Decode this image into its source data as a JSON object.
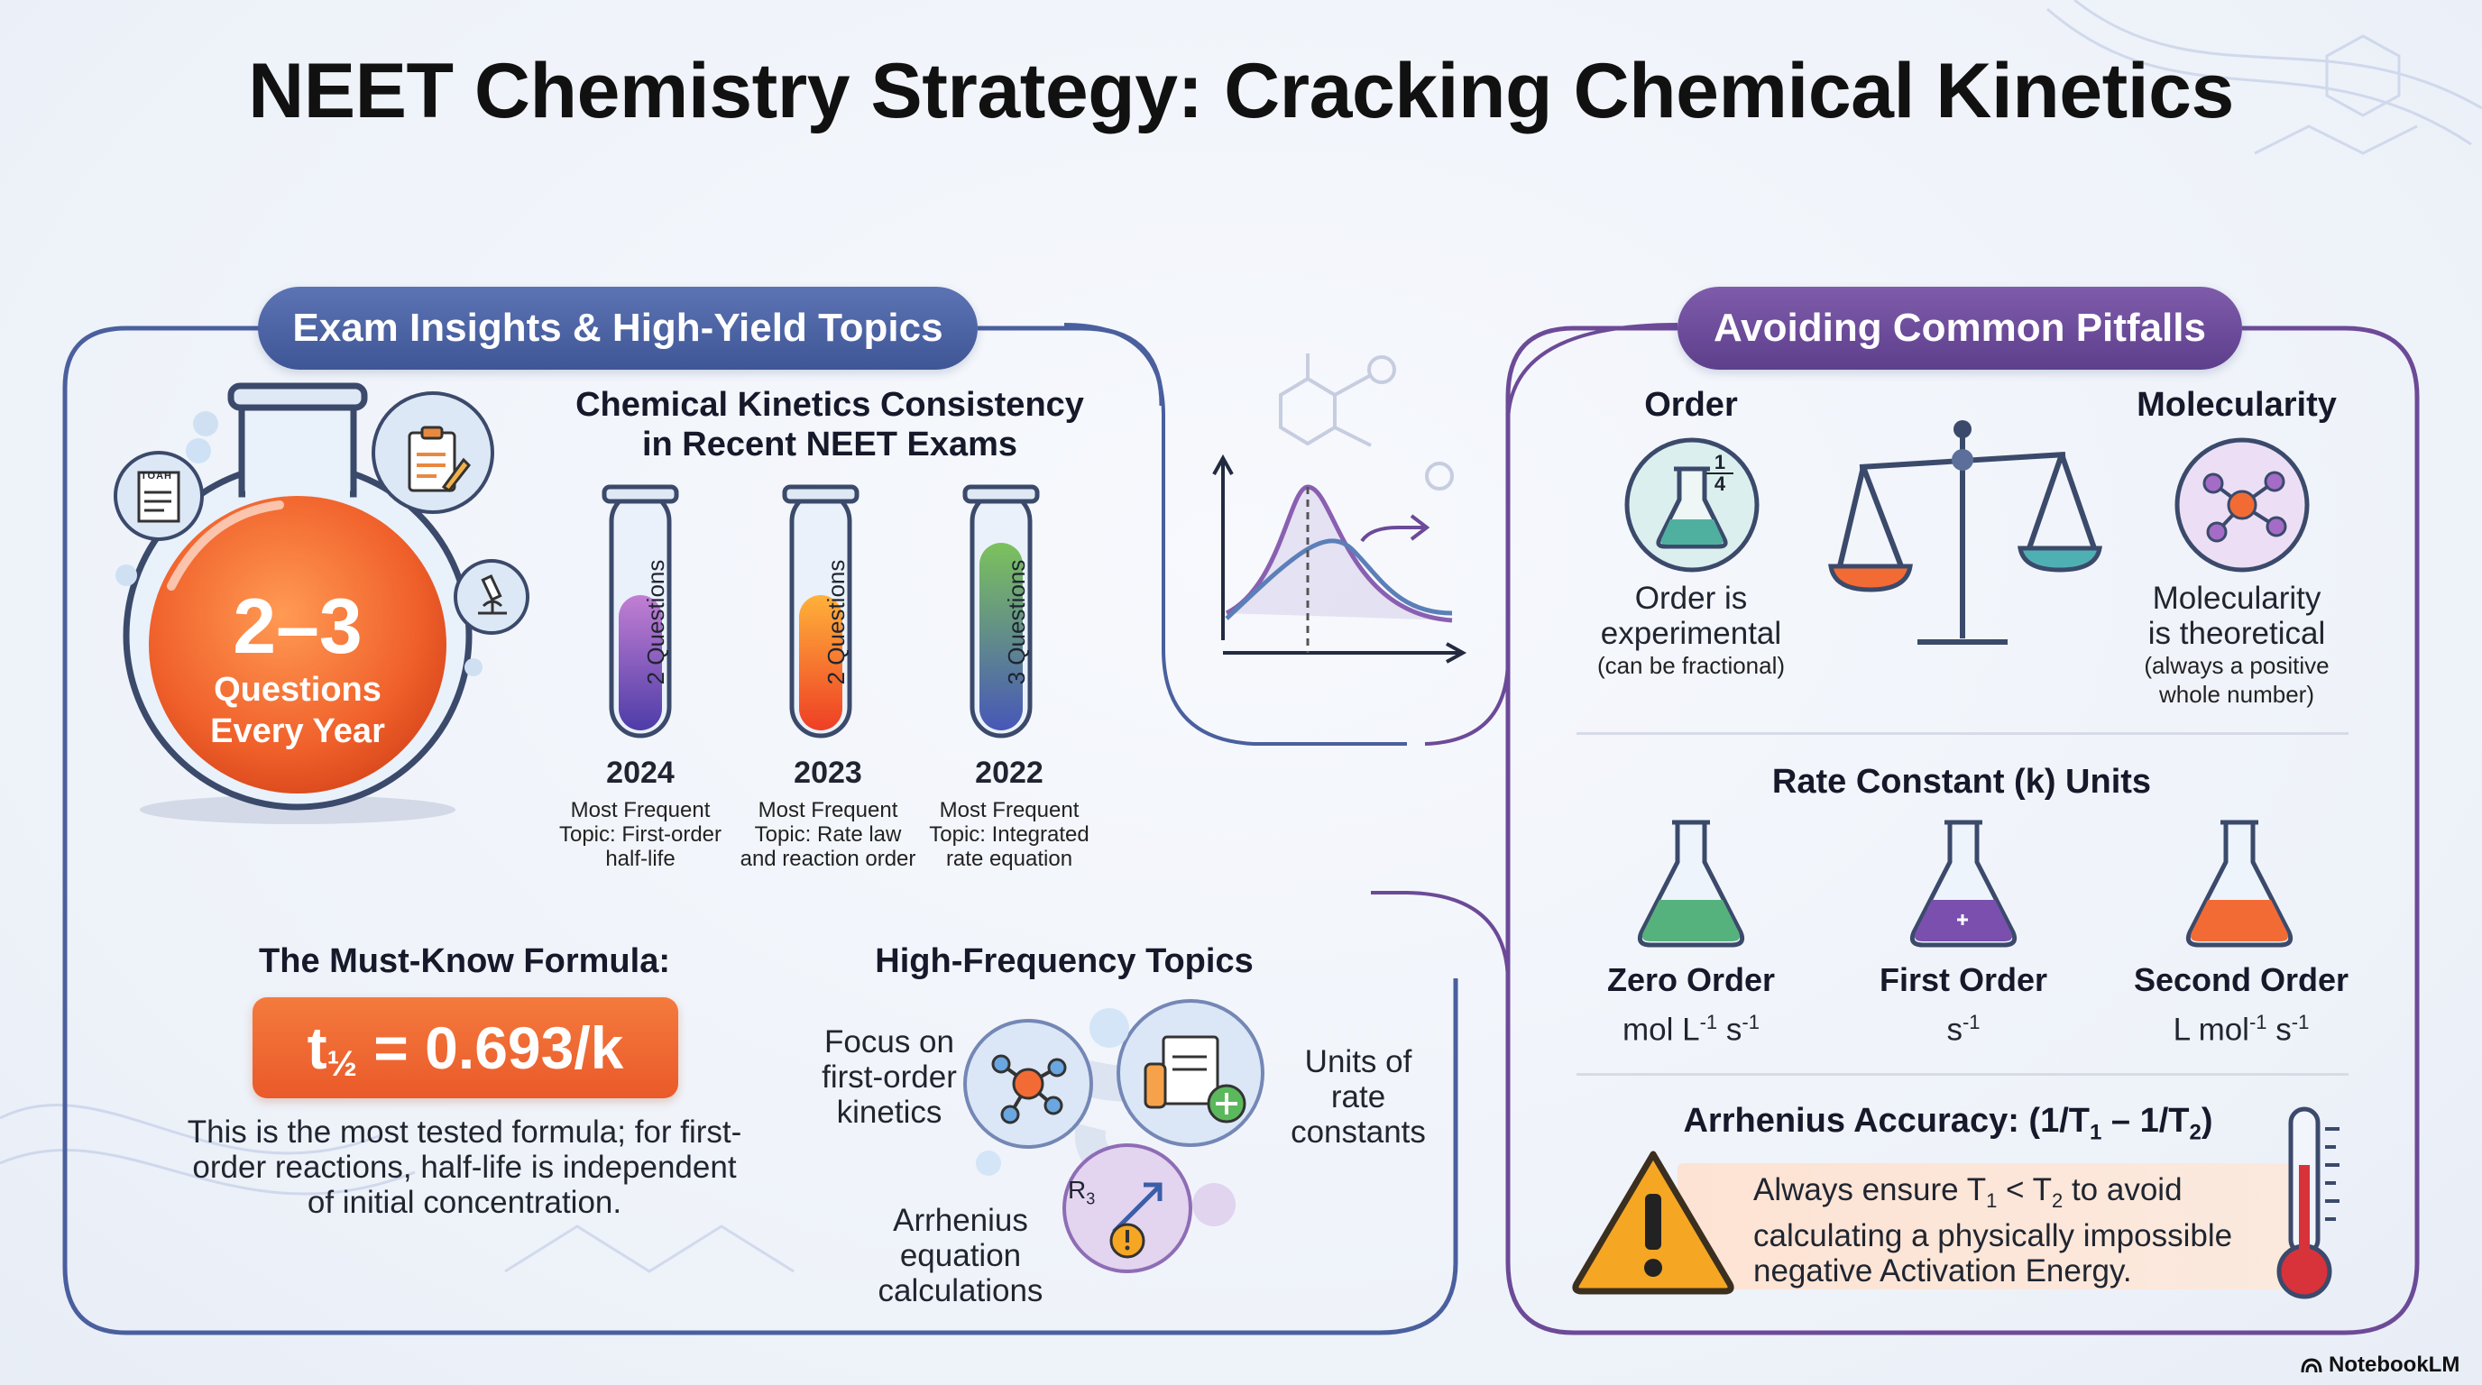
{
  "title": "NEET Chemistry Strategy: Cracking Chemical Kinetics",
  "left_panel": {
    "header": "Exam Insights & High-Yield Topics",
    "flask": {
      "big": "2–3",
      "line1": "Questions",
      "line2": "Every Year"
    },
    "consistency": {
      "title_line1": "Chemical Kinetics Consistency",
      "title_line2": "in Recent NEET Exams",
      "tubes": [
        {
          "year": "2024",
          "questions": "2 Questions",
          "questions_count": 2,
          "topic_l1": "Most Frequent",
          "topic_l2": "Topic: First-order",
          "topic_l3": "half-life",
          "color": "#8e3fb0"
        },
        {
          "year": "2023",
          "questions": "2 Questions",
          "questions_count": 2,
          "topic_l1": "Most Frequent",
          "topic_l2": "Topic: Rate law",
          "topic_l3": "and reaction order",
          "color": "#f25c2a"
        },
        {
          "year": "2022",
          "questions": "3 Questions",
          "questions_count": 3,
          "topic_l1": "Most Frequent",
          "topic_l2": "Topic: Integrated",
          "topic_l3": "rate equation",
          "color": "#4f9d45"
        }
      ]
    },
    "formula": {
      "heading": "The Must-Know Formula:",
      "t": "t",
      "half": "½",
      "rest": " = 0.693/k",
      "line1": "This is the most tested formula; for first-",
      "line2": "order reactions, half-life is independent",
      "line3": "of initial concentration."
    },
    "topics": {
      "heading": "High-Frequency Topics",
      "t1_l1": "Focus on",
      "t1_l2": "first-order",
      "t1_l3": "kinetics",
      "t2_l1": "Units of",
      "t2_l2": "rate",
      "t2_l3": "constants",
      "t3_l1": "Arrhenius",
      "t3_l2": "equation",
      "t3_l3": "calculations",
      "bubble_label": "R",
      "bubble_label_sub": "3"
    },
    "icon_note": "TOAH"
  },
  "right_panel": {
    "header": "Avoiding Common Pitfalls",
    "order": {
      "title": "Order",
      "frac_num": "1",
      "frac_den": "4",
      "l1": "Order is",
      "l2": "experimental",
      "l3": "(can be fractional)"
    },
    "molecularity": {
      "title": "Molecularity",
      "l1": "Molecularity",
      "l2": "is theoretical",
      "l3": "(always a positive",
      "l4": "whole number)"
    },
    "rate_units": {
      "heading": "Rate Constant (k) Units",
      "zero": {
        "name": "Zero Order",
        "u1": "mol L",
        "s1": "-1",
        "u2": " s",
        "s2": "-1"
      },
      "first": {
        "name": "First Order",
        "u1": "s",
        "s1": "-1"
      },
      "second": {
        "name": "Second Order",
        "u1": "L mol",
        "s1": "-1",
        "u2": " s",
        "s2": "-1"
      }
    },
    "arrhenius": {
      "h_a": "Arrhenius Accuracy: (1/T",
      "h_sub1": "1",
      "h_b": " – 1/T",
      "h_sub2": "2",
      "h_c": ")",
      "l1_a": "Always ensure T",
      "l1_sub1": "1",
      "l1_b": " < T",
      "l1_sub2": "2",
      "l1_c": " to avoid",
      "l2": "calculating a physically impossible",
      "l3": "negative Activation Energy."
    }
  },
  "branding": "NotebookLM",
  "colors": {
    "left_accent": "#4a5f9e",
    "right_accent": "#6c4a97",
    "formula_bg": "#f26b35",
    "warning": "#f5a623"
  }
}
